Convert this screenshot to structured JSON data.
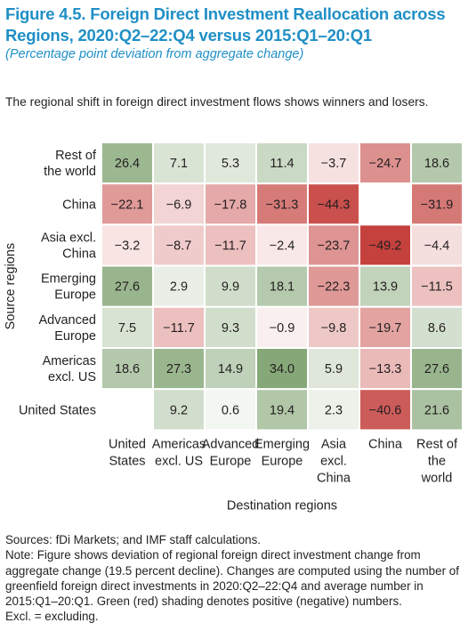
{
  "header": {
    "title": "Figure 4.5. Foreign Direct Investment Reallocation across Regions, 2020:Q2–22:Q4 versus 2015:Q1–20:Q1",
    "subtitle": "(Percentage point deviation from aggregate change)",
    "lede": "The regional shift in foreign direct investment flows shows winners and losers."
  },
  "chart_data": {
    "type": "heatmap",
    "ylabel": "Source regions",
    "xlabel": "Destination regions",
    "rows": [
      [
        "Rest of",
        "the world"
      ],
      [
        "China"
      ],
      [
        "Asia excl.",
        "China"
      ],
      [
        "Emerging",
        "Europe"
      ],
      [
        "Advanced",
        "Europe"
      ],
      [
        "Americas",
        "excl. US"
      ],
      [
        "United States"
      ]
    ],
    "columns": [
      [
        "United",
        "States"
      ],
      [
        "Americas",
        "excl. US"
      ],
      [
        "Advanced",
        "Europe"
      ],
      [
        "Emerging",
        "Europe"
      ],
      [
        "Asia",
        "excl.",
        "China"
      ],
      [
        "China"
      ],
      [
        "Rest of",
        "the",
        "world"
      ]
    ],
    "values": [
      [
        26.4,
        7.1,
        5.3,
        11.4,
        -3.7,
        -24.7,
        18.6
      ],
      [
        -22.1,
        -6.9,
        -17.8,
        -31.3,
        -44.3,
        null,
        -31.9
      ],
      [
        -3.2,
        -8.7,
        -11.7,
        -2.4,
        -23.7,
        -49.2,
        -4.4
      ],
      [
        27.6,
        2.9,
        9.9,
        18.1,
        -22.3,
        13.9,
        -11.5
      ],
      [
        7.5,
        -11.7,
        9.3,
        -0.9,
        -9.8,
        -19.7,
        8.6
      ],
      [
        18.6,
        27.3,
        14.9,
        34.0,
        5.9,
        -13.3,
        27.6
      ],
      [
        null,
        9.2,
        0.6,
        19.4,
        2.3,
        -40.6,
        21.6
      ]
    ],
    "colors": {
      "positive": "#5d8a4a",
      "negative": "#c4413d",
      "neutral": "#ffffff",
      "grid": "#ffffff",
      "text": "#231f20"
    }
  },
  "notes": {
    "sources": "Sources: fDi Markets; and IMF staff calculations.",
    "note": "Note: Figure shows deviation of regional foreign direct investment change from aggregate change (19.5 percent decline). Changes are computed using the number of greenfield foreign direct investments in 2020:Q2–22:Q4 and average number in 2015:Q1–20:Q1. Green (red) shading denotes positive (negative) numbers.",
    "abbrev": "Excl. = excluding."
  }
}
